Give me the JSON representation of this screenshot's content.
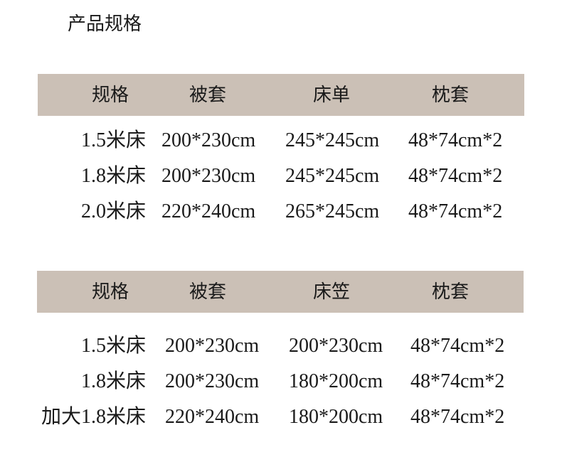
{
  "title": "产品规格",
  "header_color": "#cbc0b6",
  "tables": [
    {
      "headers": [
        "规格",
        "被套",
        "床单",
        "枕套"
      ],
      "rows": [
        [
          "1.5米床",
          "200*230cm",
          "245*245cm",
          "48*74cm*2"
        ],
        [
          "1.8米床",
          "200*230cm",
          "245*245cm",
          "48*74cm*2"
        ],
        [
          "2.0米床",
          "220*240cm",
          "265*245cm",
          "48*74cm*2"
        ]
      ]
    },
    {
      "headers": [
        "规格",
        "被套",
        "床笠",
        "枕套"
      ],
      "rows": [
        [
          "1.5米床",
          "200*230cm",
          "200*230cm",
          "48*74cm*2"
        ],
        [
          "1.8米床",
          "200*230cm",
          "180*200cm",
          "48*74cm*2"
        ],
        [
          "加大1.8米床",
          "220*240cm",
          "180*200cm",
          "48*74cm*2"
        ]
      ]
    }
  ]
}
